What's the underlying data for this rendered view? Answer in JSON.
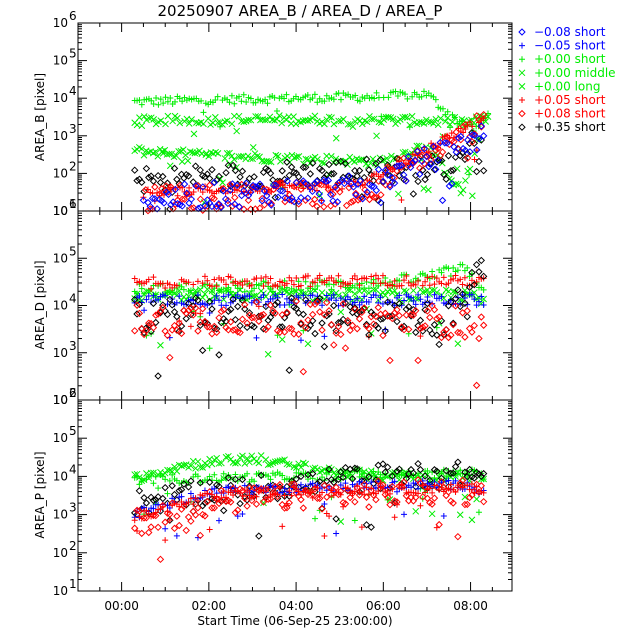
{
  "chart_data": {
    "type": "scatter",
    "title": "20250907 AREA_B / AREA_D / AREA_P",
    "xlabel": "Start Time (06-Sep-25 23:00:00)",
    "x_ticks": [
      "00:00",
      "02:00",
      "04:00",
      "06:00",
      "08:00"
    ],
    "x_tick_hours": [
      0,
      2,
      4,
      6,
      8
    ],
    "xlim_hours": [
      -1.0,
      8.95
    ],
    "legend_position": "right",
    "legend": [
      {
        "label": "−0.08 short",
        "color": "#0000ff",
        "marker": "diamond"
      },
      {
        "label": "−0.05 short",
        "color": "#0000ff",
        "marker": "plus"
      },
      {
        "label": "+0.00 short",
        "color": "#00ee00",
        "marker": "plus"
      },
      {
        "label": "+0.00 middle",
        "color": "#00ee00",
        "marker": "x"
      },
      {
        "label": "+0.00 long",
        "color": "#00ee00",
        "marker": "x"
      },
      {
        "label": "+0.05 short",
        "color": "#ff0000",
        "marker": "plus"
      },
      {
        "label": "+0.08 short",
        "color": "#ff0000",
        "marker": "diamond"
      },
      {
        "label": "+0.35 short",
        "color": "#000000",
        "marker": "diamond"
      }
    ],
    "panels": [
      {
        "ylabel": "AREA_B [pixel]",
        "yscale": "log",
        "ylim": [
          10,
          1000000
        ],
        "y_ticks": [
          "10",
          "10",
          "10",
          "10",
          "10",
          "10"
        ],
        "y_tick_exps": [
          "1",
          "2",
          "3",
          "4",
          "5",
          "6"
        ],
        "y_tick_values": [
          10,
          100,
          1000,
          10000,
          100000,
          1000000
        ],
        "series": [
          {
            "name": "+0.00 short",
            "color": "#00ee00",
            "marker": "plus",
            "trend_x": [
              0.3,
              2.0,
              4.0,
              6.0,
              7.0,
              7.6,
              8.1,
              8.4
            ],
            "trend_y": [
              8000,
              9000,
              10000,
              11000,
              13000,
              3000,
              1500,
              3500
            ]
          },
          {
            "name": "+0.00 middle",
            "color": "#00ee00",
            "marker": "x",
            "trend_x": [
              0.3,
              2.0,
              4.0,
              6.0,
              7.5,
              8.0,
              8.4
            ],
            "trend_y": [
              2500,
              2600,
              2700,
              2600,
              2400,
              2300,
              3000
            ]
          },
          {
            "name": "+0.00 long",
            "color": "#00ee00",
            "marker": "x",
            "trend_x": [
              0.3,
              2.0,
              4.0,
              6.0,
              7.0,
              7.8,
              8.2
            ],
            "trend_y": [
              400,
              300,
              250,
              200,
              600,
              30,
              1000
            ]
          },
          {
            "name": "+0.35 short",
            "color": "#000000",
            "marker": "diamond",
            "trend_x": [
              0.3,
              2.0,
              4.0,
              6.0,
              7.5,
              8.3
            ],
            "trend_y": [
              60,
              80,
              100,
              120,
              150,
              2000
            ]
          },
          {
            "name": "+0.05 short",
            "color": "#ff0000",
            "marker": "plus",
            "trend_x": [
              0.5,
              3.0,
              5.5,
              8.3
            ],
            "trend_y": [
              30,
              40,
              50,
              3000
            ]
          },
          {
            "name": "+0.08 short",
            "color": "#ff0000",
            "marker": "diamond",
            "trend_x": [
              0.5,
              3.0,
              5.5,
              8.3
            ],
            "trend_y": [
              20,
              25,
              30,
              2000
            ]
          },
          {
            "name": "−0.08 short",
            "color": "#0000ff",
            "marker": "diamond",
            "trend_x": [
              0.5,
              3.0,
              5.5,
              8.3
            ],
            "trend_y": [
              20,
              30,
              40,
              1000
            ]
          }
        ]
      },
      {
        "ylabel": "AREA_D [pixel]",
        "yscale": "log",
        "ylim": [
          100,
          1000000
        ],
        "y_ticks": [
          "10",
          "10",
          "10",
          "10",
          "10"
        ],
        "y_tick_exps": [
          "2",
          "3",
          "4",
          "5",
          "6"
        ],
        "y_tick_values": [
          100,
          1000,
          10000,
          100000,
          1000000
        ],
        "series": [
          {
            "name": "+0.00 short",
            "color": "#00ee00",
            "marker": "plus",
            "trend_x": [
              0.3,
              2.0,
              4.0,
              6.0,
              7.0,
              7.8,
              8.3
            ],
            "trend_y": [
              22000,
              24000,
              26000,
              30000,
              40000,
              60000,
              25000
            ]
          },
          {
            "name": "+0.00 middle",
            "color": "#00ee00",
            "marker": "x",
            "trend_x": [
              0.3,
              2.0,
              4.0,
              6.0,
              8.0,
              8.3
            ],
            "trend_y": [
              16000,
              17000,
              16000,
              17000,
              16000,
              12000
            ]
          },
          {
            "name": "+0.05 short",
            "color": "#ff0000",
            "marker": "plus",
            "trend_x": [
              0.3,
              2.0,
              4.0,
              6.0,
              8.0,
              8.3
            ],
            "trend_y": [
              30000,
              32000,
              33000,
              34000,
              33000,
              30000
            ]
          },
          {
            "name": "−0.05 short",
            "color": "#0000ff",
            "marker": "plus",
            "trend_x": [
              0.3,
              2.0,
              4.0,
              6.0,
              8.0,
              8.3
            ],
            "trend_y": [
              13000,
              13000,
              13000,
              13000,
              13000,
              13000
            ]
          },
          {
            "name": "+0.35 short",
            "color": "#000000",
            "marker": "diamond",
            "trend_x": [
              0.3,
              2.0,
              4.0,
              6.0,
              7.5,
              8.3
            ],
            "trend_y": [
              6000,
              6500,
              6500,
              6000,
              5000,
              70000
            ]
          },
          {
            "name": "+0.08 short",
            "color": "#ff0000",
            "marker": "diamond",
            "trend_x": [
              0.3,
              2.0,
              4.0,
              6.0,
              8.0,
              8.3
            ],
            "trend_y": [
              5000,
              5500,
              5500,
              5000,
              4500,
              3000
            ]
          }
        ]
      },
      {
        "ylabel": "AREA_P [pixel]",
        "yscale": "log",
        "ylim": [
          10,
          1000000
        ],
        "y_ticks": [
          "10",
          "10",
          "10",
          "10",
          "10",
          "10"
        ],
        "y_tick_exps": [
          "1",
          "2",
          "3",
          "4",
          "5",
          "6"
        ],
        "y_tick_values": [
          10,
          100,
          1000,
          10000,
          100000,
          1000000
        ],
        "series": [
          {
            "name": "+0.00 short",
            "color": "#00ee00",
            "marker": "plus",
            "trend_x": [
              0.3,
              2.0,
              4.0,
              6.0,
              8.0,
              8.3
            ],
            "trend_y": [
              8000,
              9000,
              10000,
              11000,
              12000,
              10000
            ]
          },
          {
            "name": "+0.00 middle",
            "color": "#00ee00",
            "marker": "x",
            "trend_x": [
              0.3,
              1.5,
              3.0,
              4.5,
              6.0,
              8.3
            ],
            "trend_y": [
              9000,
              20000,
              30000,
              15000,
              10000,
              10000
            ]
          },
          {
            "name": "+0.35 short",
            "color": "#000000",
            "marker": "diamond",
            "trend_x": [
              0.3,
              2.0,
              4.0,
              6.0,
              8.0,
              8.3
            ],
            "trend_y": [
              2000,
              4000,
              6000,
              10000,
              11000,
              10000
            ]
          },
          {
            "name": "−0.05 short",
            "color": "#0000ff",
            "marker": "plus",
            "trend_x": [
              0.3,
              2.0,
              4.0,
              6.0,
              8.0,
              8.3
            ],
            "trend_y": [
              1000,
              4000,
              5000,
              6000,
              6000,
              4000
            ]
          },
          {
            "name": "+0.05 short",
            "color": "#ff0000",
            "marker": "plus",
            "trend_x": [
              0.3,
              2.0,
              4.0,
              6.0,
              8.0,
              8.3
            ],
            "trend_y": [
              800,
              3000,
              4000,
              4500,
              5000,
              3500
            ]
          },
          {
            "name": "+0.08 short",
            "color": "#ff0000",
            "marker": "diamond",
            "trend_x": [
              0.3,
              2.0,
              4.0,
              6.0,
              8.0,
              8.3
            ],
            "trend_y": [
              600,
              2000,
              3000,
              3500,
              4000,
              3000
            ]
          }
        ]
      }
    ]
  }
}
